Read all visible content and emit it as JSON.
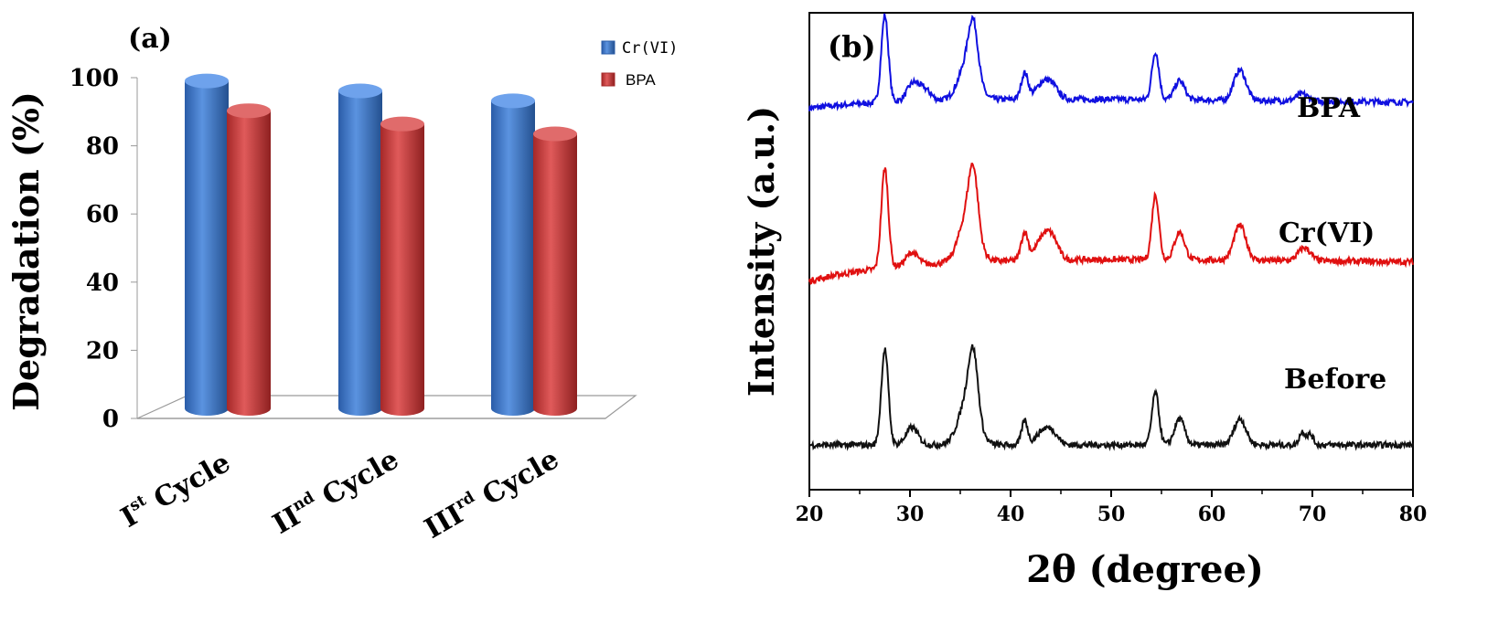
{
  "chart_data": [
    {
      "type": "bar",
      "panel_label": "(a)",
      "title": "",
      "xlabel": "",
      "ylabel": "Degradation (%)",
      "ylim": [
        0,
        100
      ],
      "yticks": [
        "0",
        "20",
        "40",
        "60",
        "80",
        "100"
      ],
      "categories": [
        {
          "main": "I",
          "sup": "st",
          "rest": "Cycle"
        },
        {
          "main": "II",
          "sup": "nd",
          "rest": "Cycle"
        },
        {
          "main": "III",
          "sup": "rd",
          "rest": "Cycle"
        }
      ],
      "series": [
        {
          "name": "Cr(VI)",
          "values": [
            99,
            96,
            93
          ],
          "color": "#3d74c8"
        },
        {
          "name": "BPA",
          "values": [
            90,
            86,
            83
          ],
          "color": "#cc3a3a"
        }
      ],
      "legend_position": "top-right",
      "grid": false
    },
    {
      "type": "line",
      "panel_label": "(b)",
      "title": "",
      "xlabel": "2θ (degree)",
      "ylabel": "Intensity (a.u.)",
      "xlim": [
        20,
        80
      ],
      "xticks": [
        "20",
        "30",
        "40",
        "50",
        "60",
        "70",
        "80"
      ],
      "grid": false,
      "series": [
        {
          "name": "BPA",
          "color": "#1010e0",
          "offset": 2,
          "start": 0.3,
          "end": 0.45,
          "peaks": [
            [
              27.5,
              1.0,
              0.35
            ],
            [
              30.3,
              0.2,
              0.6
            ],
            [
              31.5,
              0.12,
              0.6
            ],
            [
              35.8,
              0.45,
              0.9
            ],
            [
              36.3,
              0.55,
              0.45
            ],
            [
              41.4,
              0.3,
              0.35
            ],
            [
              43.2,
              0.18,
              0.7
            ],
            [
              44.2,
              0.12,
              0.6
            ],
            [
              54.4,
              0.55,
              0.35
            ],
            [
              56.8,
              0.22,
              0.5
            ],
            [
              62.8,
              0.35,
              0.6
            ],
            [
              69.0,
              0.08,
              0.6
            ]
          ]
        },
        {
          "name": "Cr(VI)",
          "color": "#e01010",
          "offset": 1,
          "start": 0.1,
          "end": 0.4,
          "peaks": [
            [
              27.5,
              1.15,
              0.35
            ],
            [
              30.2,
              0.15,
              0.6
            ],
            [
              35.8,
              0.55,
              0.9
            ],
            [
              36.3,
              0.65,
              0.45
            ],
            [
              41.4,
              0.32,
              0.35
            ],
            [
              43.2,
              0.25,
              0.7
            ],
            [
              44.2,
              0.2,
              0.6
            ],
            [
              54.4,
              0.75,
              0.35
            ],
            [
              56.8,
              0.32,
              0.5
            ],
            [
              62.8,
              0.4,
              0.6
            ],
            [
              69.2,
              0.15,
              0.6
            ]
          ]
        },
        {
          "name": "Before",
          "color": "#111111",
          "offset": 0,
          "start": 0.0,
          "end": 0.0,
          "peaks": [
            [
              27.5,
              1.1,
              0.35
            ],
            [
              30.2,
              0.2,
              0.6
            ],
            [
              35.8,
              0.55,
              0.9
            ],
            [
              36.3,
              0.65,
              0.45
            ],
            [
              41.4,
              0.28,
              0.3
            ],
            [
              43.2,
              0.15,
              0.7
            ],
            [
              44.2,
              0.12,
              0.6
            ],
            [
              54.4,
              0.6,
              0.35
            ],
            [
              56.8,
              0.3,
              0.5
            ],
            [
              62.8,
              0.3,
              0.6
            ],
            [
              69.0,
              0.15,
              0.3
            ],
            [
              69.8,
              0.12,
              0.3
            ]
          ]
        }
      ],
      "curve_labels": [
        "BPA",
        "Cr(VI)",
        "Before"
      ]
    }
  ]
}
